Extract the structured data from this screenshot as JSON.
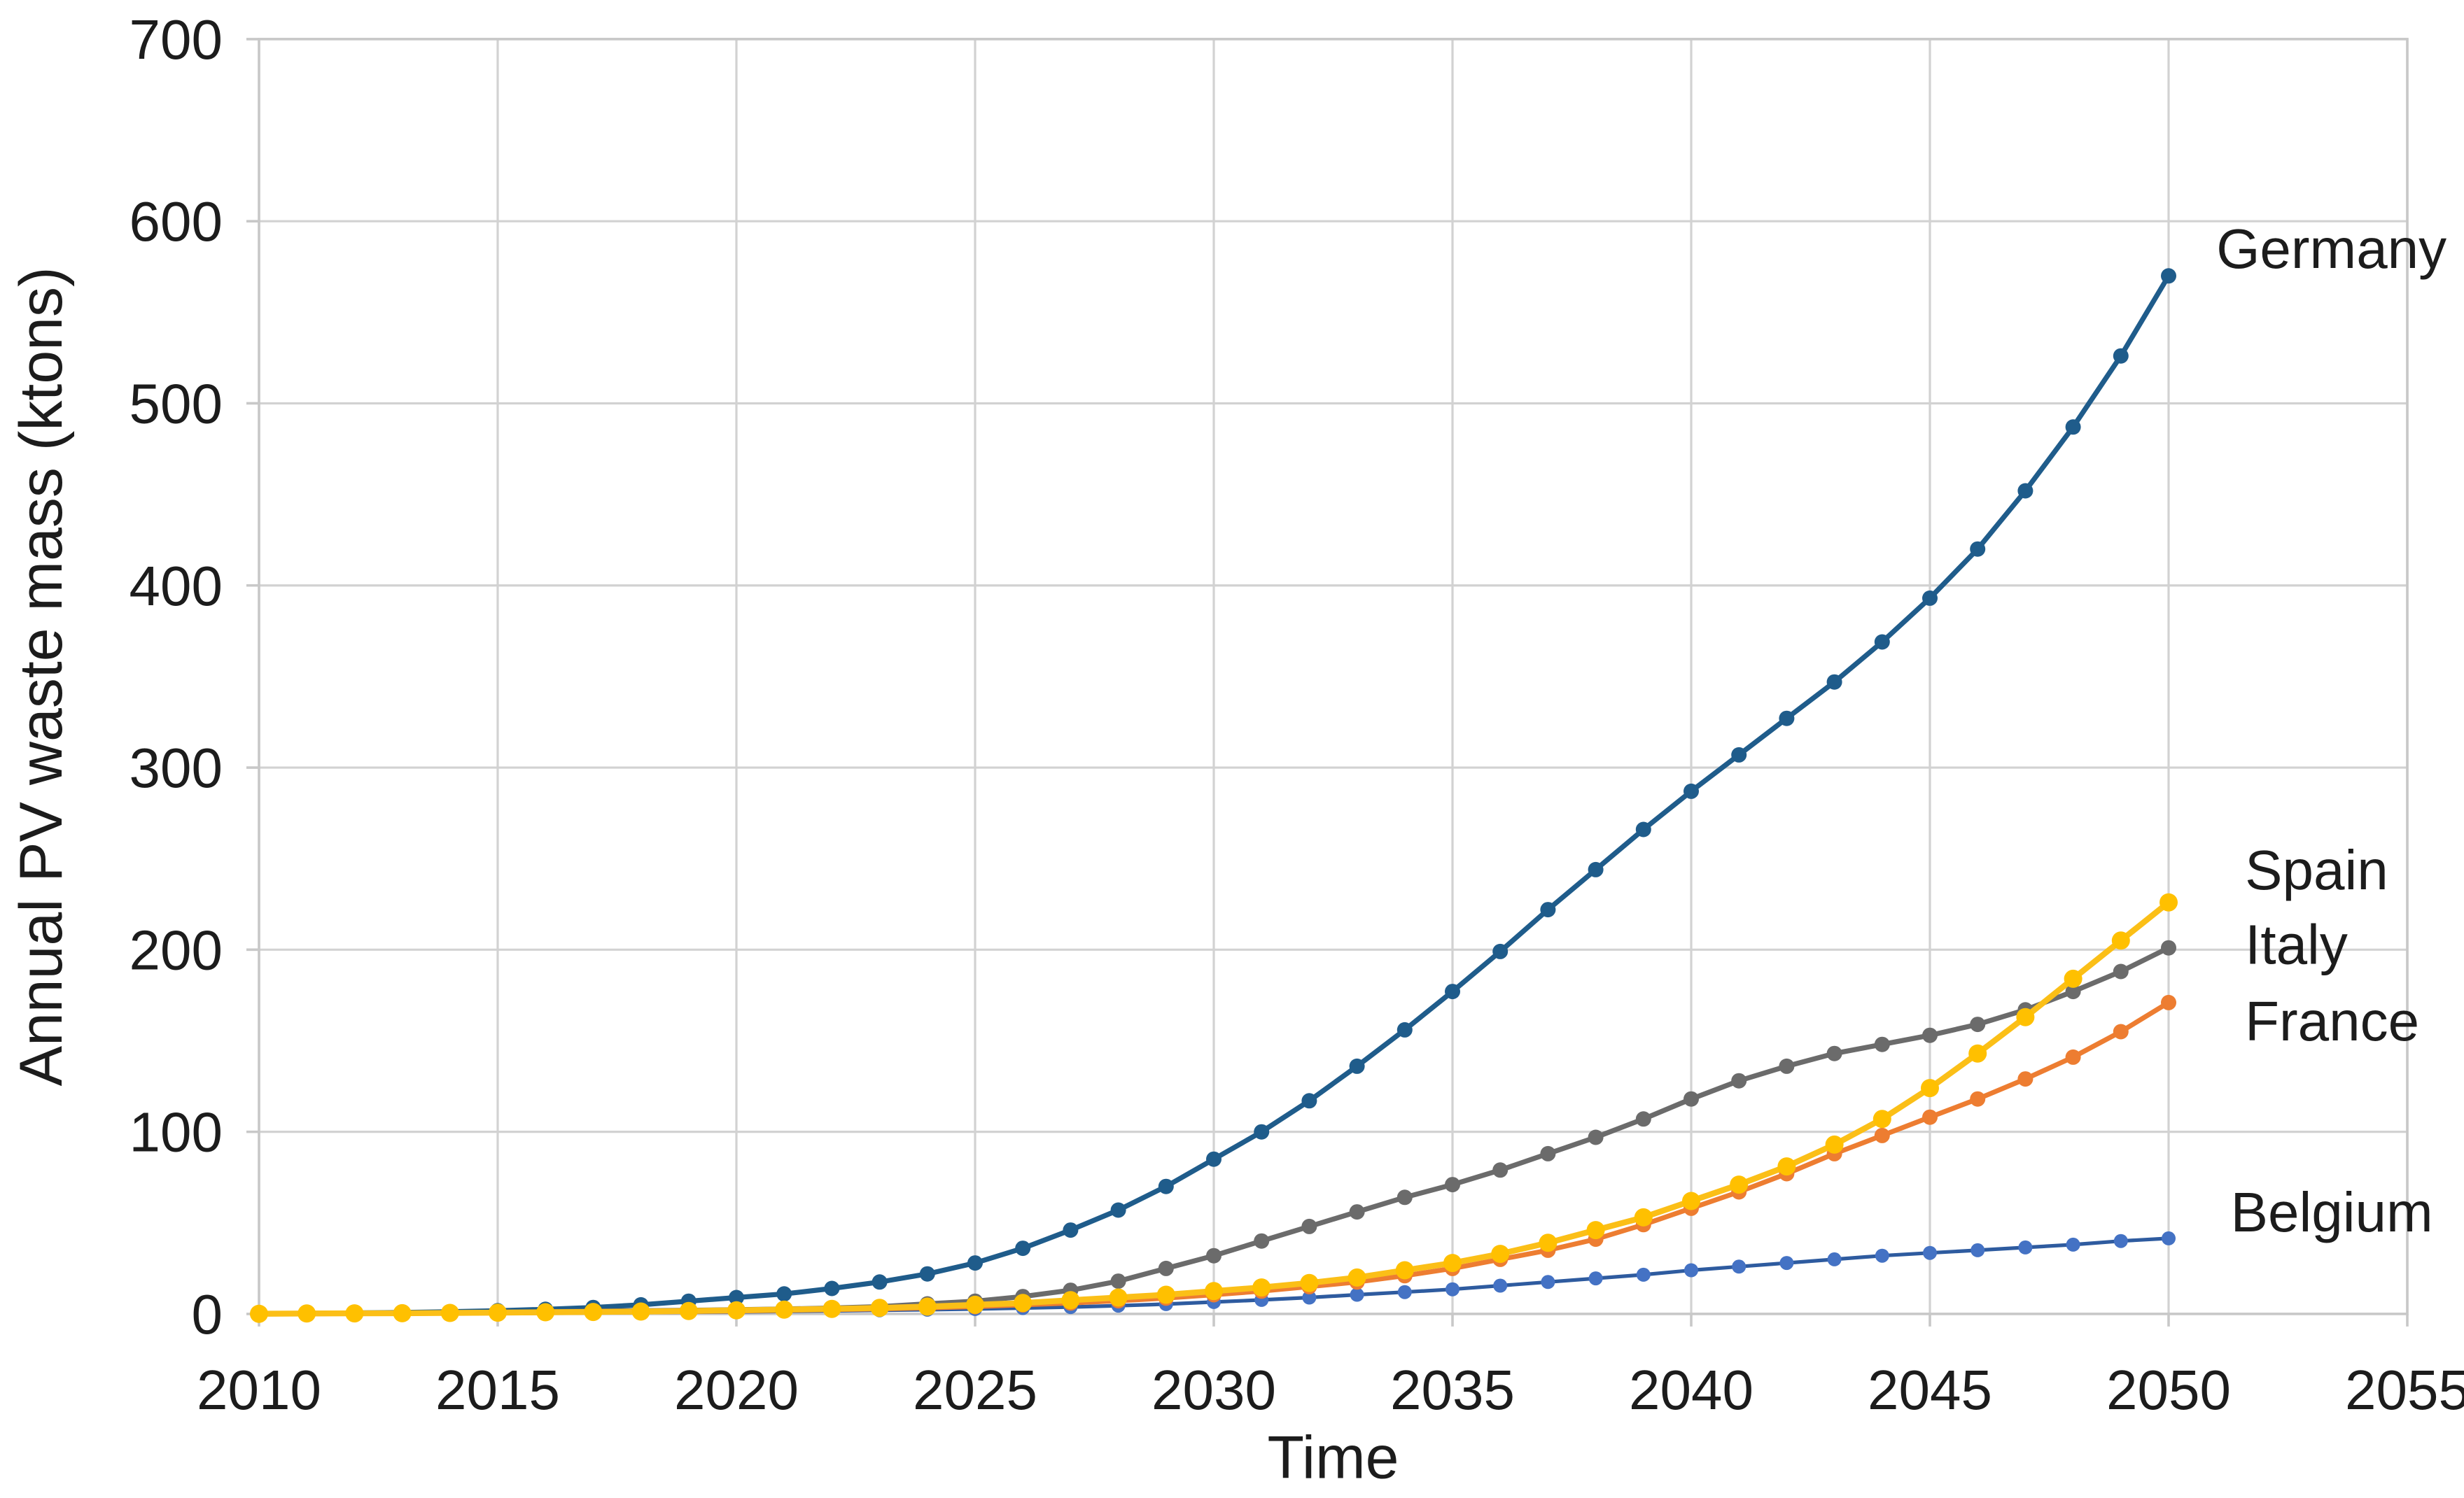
{
  "chart_data": {
    "type": "line",
    "title": "",
    "xlabel": "Time",
    "ylabel": "Annual PV waste mass (ktons)",
    "xlim": [
      2010,
      2055
    ],
    "ylim": [
      0,
      700
    ],
    "xticks": [
      2010,
      2015,
      2020,
      2025,
      2030,
      2035,
      2040,
      2045,
      2050,
      2055
    ],
    "yticks": [
      0,
      100,
      200,
      300,
      400,
      500,
      600,
      700
    ],
    "grid": true,
    "legend_position": "inline-right-of-line-ends",
    "x": [
      2010,
      2011,
      2012,
      2013,
      2014,
      2015,
      2016,
      2017,
      2018,
      2019,
      2020,
      2021,
      2022,
      2023,
      2024,
      2025,
      2026,
      2027,
      2028,
      2029,
      2030,
      2031,
      2032,
      2033,
      2034,
      2035,
      2036,
      2037,
      2038,
      2039,
      2040,
      2041,
      2042,
      2043,
      2044,
      2045,
      2046,
      2047,
      2048,
      2049,
      2050
    ],
    "series": [
      {
        "name": "Germany",
        "line_color": "#1F5C8B",
        "marker_color": "#1F5C8B",
        "line_width": 3.6,
        "marker_radius": 5.5,
        "values": [
          0.2,
          0.3,
          0.5,
          0.8,
          1.2,
          1.8,
          2.5,
          3.5,
          5,
          7,
          9,
          11,
          14,
          17.5,
          22,
          28,
          36,
          46,
          57,
          70,
          85,
          100,
          117,
          136,
          156,
          177,
          199,
          222,
          244,
          266,
          287,
          307,
          327,
          347,
          369,
          393,
          420,
          452,
          487,
          526,
          570
        ]
      },
      {
        "name": "Italy",
        "line_color": "#6B6B6B",
        "marker_color": "#6B6B6B",
        "line_width": 3.6,
        "marker_radius": 5.5,
        "values": [
          0.1,
          0.2,
          0.3,
          0.5,
          0.7,
          1,
          1.2,
          1.5,
          1.8,
          2,
          2.3,
          2.7,
          3.2,
          4,
          5.5,
          7,
          9.5,
          13,
          18,
          25,
          32,
          40,
          48,
          56,
          64,
          71,
          79,
          88,
          97,
          107,
          118,
          128,
          136,
          143,
          148,
          153,
          159,
          167,
          177,
          188,
          201
        ]
      },
      {
        "name": "Belgium",
        "line_color": "#2E5B9F",
        "marker_color": "#4472C4",
        "line_width": 2.6,
        "marker_radius": 5,
        "values": [
          0,
          0.1,
          0.1,
          0.2,
          0.3,
          0.4,
          0.5,
          0.6,
          0.8,
          0.9,
          1.1,
          1.4,
          1.7,
          2,
          2.3,
          2.7,
          3.2,
          3.8,
          4.5,
          5.4,
          6.5,
          7.7,
          9,
          10.5,
          12,
          13.5,
          15.5,
          17.5,
          19.5,
          21.5,
          24,
          26,
          28,
          30,
          32,
          33.5,
          35,
          36.5,
          38,
          40,
          41.5
        ]
      },
      {
        "name": "France",
        "line_color": "#ED7D31",
        "marker_color": "#ED7D31",
        "line_width": 3.5,
        "marker_radius": 5.5,
        "values": [
          0.1,
          0.1,
          0.2,
          0.3,
          0.4,
          0.5,
          0.7,
          0.9,
          1.1,
          1.3,
          1.6,
          2,
          2.4,
          2.8,
          3.3,
          4,
          5,
          6,
          7.2,
          8.7,
          10.5,
          12.5,
          15,
          17.5,
          21,
          25,
          30,
          35,
          41,
          49,
          58,
          67,
          77,
          88,
          98,
          108,
          118,
          129,
          141,
          155,
          171
        ]
      },
      {
        "name": "Spain",
        "line_color": "#FBBF17",
        "marker_color": "#FFC000",
        "line_width": 4.2,
        "marker_radius": 6.5,
        "values": [
          0.1,
          0.2,
          0.3,
          0.4,
          0.5,
          0.7,
          0.9,
          1.1,
          1.3,
          1.6,
          2,
          2.4,
          2.8,
          3.3,
          4,
          5,
          6,
          7.5,
          9,
          10.5,
          12.5,
          14.5,
          17,
          20,
          24,
          28,
          33,
          39,
          46,
          53,
          62,
          71,
          81,
          93,
          107,
          124,
          143,
          163,
          184,
          205,
          226
        ]
      }
    ],
    "inline_labels": [
      {
        "text": "Germany",
        "x_year": 2051.0,
        "y_value": 585
      },
      {
        "text": "Spain",
        "x_year": 2051.6,
        "y_value": 244
      },
      {
        "text": "Italy",
        "x_year": 2051.6,
        "y_value": 203
      },
      {
        "text": "France",
        "x_year": 2051.6,
        "y_value": 161
      },
      {
        "text": "Belgium",
        "x_year": 2051.3,
        "y_value": 56
      }
    ],
    "colors": {
      "grid": "#D2D2D2",
      "plot_border": "#C8C8C8",
      "text": "#1c1c1c",
      "background": "#ffffff"
    }
  }
}
